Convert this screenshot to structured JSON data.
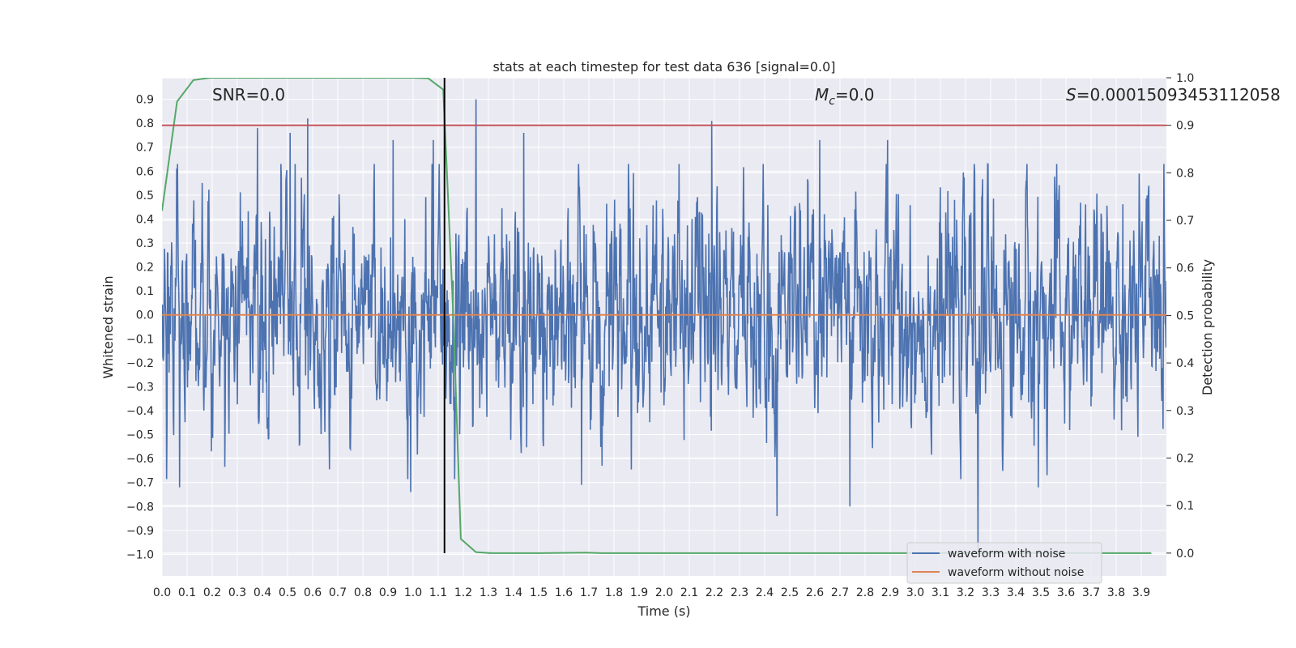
{
  "chart_data": {
    "type": "line",
    "title": "stats at each timestep for test data 636 [signal=0.0]",
    "xlabel": "Time (s)",
    "ylabel": "Whitened strain",
    "y2label": "Detection probability",
    "xlim": [
      0.0,
      4.0
    ],
    "ylim": [
      -1.09,
      0.99
    ],
    "y2lim": [
      -0.048,
      1.0
    ],
    "xticks": [
      "0.0",
      "0.1",
      "0.2",
      "0.3",
      "0.4",
      "0.5",
      "0.6",
      "0.7",
      "0.8",
      "0.9",
      "1.0",
      "1.1",
      "1.2",
      "1.3",
      "1.4",
      "1.5",
      "1.6",
      "1.7",
      "1.8",
      "1.9",
      "2.0",
      "2.1",
      "2.2",
      "2.3",
      "2.4",
      "2.5",
      "2.6",
      "2.7",
      "2.8",
      "2.9",
      "3.0",
      "3.1",
      "3.2",
      "3.3",
      "3.4",
      "3.5",
      "3.6",
      "3.7",
      "3.8",
      "3.9"
    ],
    "yticks": [
      "0.9",
      "0.8",
      "0.7",
      "0.6",
      "0.5",
      "0.4",
      "0.3",
      "0.2",
      "0.1",
      "0.0",
      "−0.1",
      "−0.2",
      "−0.3",
      "−0.4",
      "−0.5",
      "−0.6",
      "−0.7",
      "−0.8",
      "−0.9",
      "−1.0"
    ],
    "y2ticks": [
      "1.0",
      "0.9",
      "0.8",
      "0.7",
      "0.6",
      "0.5",
      "0.4",
      "0.3",
      "0.2",
      "0.1",
      "0.0"
    ],
    "annotations": {
      "snr": "SNR=0.0",
      "mc_symbol": "M",
      "mc_sub": "c",
      "mc_value": "=0.0",
      "s_symbol": "S",
      "s_value": "=0.00015093453112058"
    },
    "threshold_prob": 0.9,
    "event_time": 1.125,
    "noisy_waveform": {
      "name": "waveform with noise",
      "color": "#4c72b0",
      "n_samples": 8192,
      "amplitude_range": [
        -0.98,
        0.9
      ],
      "peaks": [
        {
          "x": 0.38,
          "y": 0.78
        },
        {
          "x": 0.51,
          "y": 0.76
        },
        {
          "x": 0.58,
          "y": 0.82
        },
        {
          "x": 0.92,
          "y": 0.73
        },
        {
          "x": 1.08,
          "y": 0.73
        },
        {
          "x": 1.25,
          "y": 0.9
        },
        {
          "x": 1.44,
          "y": 0.76
        },
        {
          "x": 2.19,
          "y": 0.81
        },
        {
          "x": 2.62,
          "y": 0.73
        },
        {
          "x": 2.89,
          "y": 0.73
        },
        {
          "x": 0.07,
          "y": -0.72
        },
        {
          "x": 0.99,
          "y": -0.74
        },
        {
          "x": 1.67,
          "y": -0.71
        },
        {
          "x": 2.45,
          "y": -0.84
        },
        {
          "x": 2.74,
          "y": -0.8
        },
        {
          "x": 3.25,
          "y": -0.98
        },
        {
          "x": 3.49,
          "y": -0.72
        }
      ]
    },
    "clean_waveform": {
      "name": "waveform without noise",
      "color": "#dd8452",
      "value": 0.0
    },
    "detection_probability": {
      "color": "#55a868",
      "x": [
        0.0,
        0.06,
        0.125,
        0.19,
        0.25,
        0.5,
        0.75,
        1.0,
        1.06,
        1.12,
        1.16,
        1.19,
        1.25,
        1.31,
        1.5,
        1.69,
        1.75,
        2.0,
        2.5,
        3.0,
        3.5,
        3.94
      ],
      "y": [
        0.72,
        0.95,
        0.995,
        1.0,
        1.0,
        1.0,
        1.0,
        1.0,
        0.999,
        0.975,
        0.5,
        0.03,
        0.002,
        0.0,
        0.0,
        0.001,
        0.0,
        0.0,
        0.0,
        0.0,
        0.0,
        0.0
      ]
    },
    "colors": {
      "background": "#eaeaf2",
      "grid": "#ffffff",
      "threshold": "#c44e52",
      "event_line": "#000000"
    },
    "legend_position": "lower-right"
  }
}
